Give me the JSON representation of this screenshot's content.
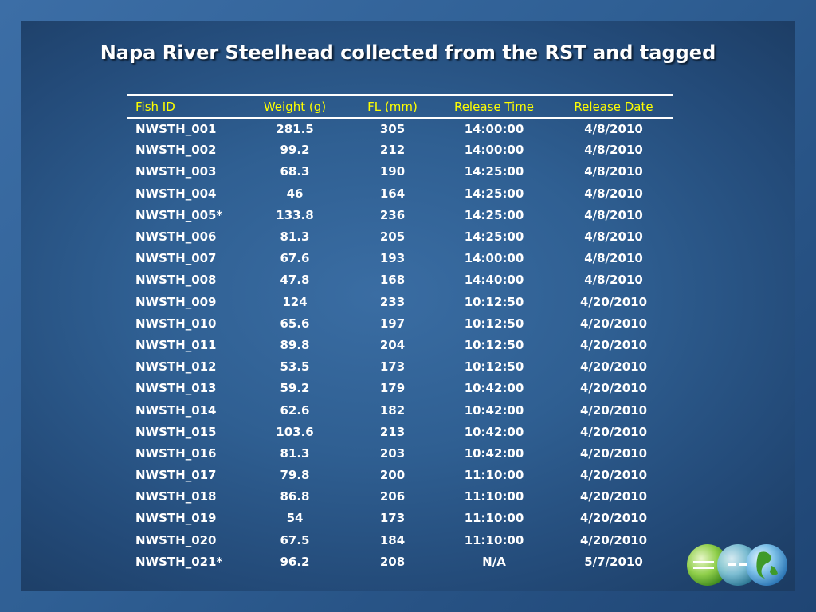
{
  "slide": {
    "title": "Napa River Steelhead collected from the RST and tagged"
  },
  "table": {
    "headers": [
      "Fish ID",
      "Weight (g)",
      "FL (mm)",
      "Release Time",
      "Release Date"
    ],
    "rows": [
      [
        "NWSTH_001",
        "281.5",
        "305",
        "14:00:00",
        "4/8/2010"
      ],
      [
        "NWSTH_002",
        "99.2",
        "212",
        "14:00:00",
        "4/8/2010"
      ],
      [
        "NWSTH_003",
        "68.3",
        "190",
        "14:25:00",
        "4/8/2010"
      ],
      [
        "NWSTH_004",
        "46",
        "164",
        "14:25:00",
        "4/8/2010"
      ],
      [
        "NWSTH_005*",
        "133.8",
        "236",
        "14:25:00",
        "4/8/2010"
      ],
      [
        "NWSTH_006",
        "81.3",
        "205",
        "14:25:00",
        "4/8/2010"
      ],
      [
        "NWSTH_007",
        "67.6",
        "193",
        "14:00:00",
        "4/8/2010"
      ],
      [
        "NWSTH_008",
        "47.8",
        "168",
        "14:40:00",
        "4/8/2010"
      ],
      [
        "NWSTH_009",
        "124",
        "233",
        "10:12:50",
        "4/20/2010"
      ],
      [
        "NWSTH_010",
        "65.6",
        "197",
        "10:12:50",
        "4/20/2010"
      ],
      [
        "NWSTH_011",
        "89.8",
        "204",
        "10:12:50",
        "4/20/2010"
      ],
      [
        "NWSTH_012",
        "53.5",
        "173",
        "10:12:50",
        "4/20/2010"
      ],
      [
        "NWSTH_013",
        "59.2",
        "179",
        "10:42:00",
        "4/20/2010"
      ],
      [
        "NWSTH_014",
        "62.6",
        "182",
        "10:42:00",
        "4/20/2010"
      ],
      [
        "NWSTH_015",
        "103.6",
        "213",
        "10:42:00",
        "4/20/2010"
      ],
      [
        "NWSTH_016",
        "81.3",
        "203",
        "10:42:00",
        "4/20/2010"
      ],
      [
        "NWSTH_017",
        "79.8",
        "200",
        "11:10:00",
        "4/20/2010"
      ],
      [
        "NWSTH_018",
        "86.8",
        "206",
        "11:10:00",
        "4/20/2010"
      ],
      [
        "NWSTH_019",
        "54",
        "173",
        "11:10:00",
        "4/20/2010"
      ],
      [
        "NWSTH_020",
        "67.5",
        "184",
        "11:10:00",
        "4/20/2010"
      ],
      [
        "NWSTH_021*",
        "96.2",
        "208",
        "N/A",
        "5/7/2010"
      ]
    ]
  },
  "logo": {
    "icon": "globe-logo-icon"
  },
  "colors": {
    "header_text": "#ffff00",
    "body_text": "#ffffff",
    "title_text": "#ffffff",
    "panel": "#2f5f92"
  }
}
